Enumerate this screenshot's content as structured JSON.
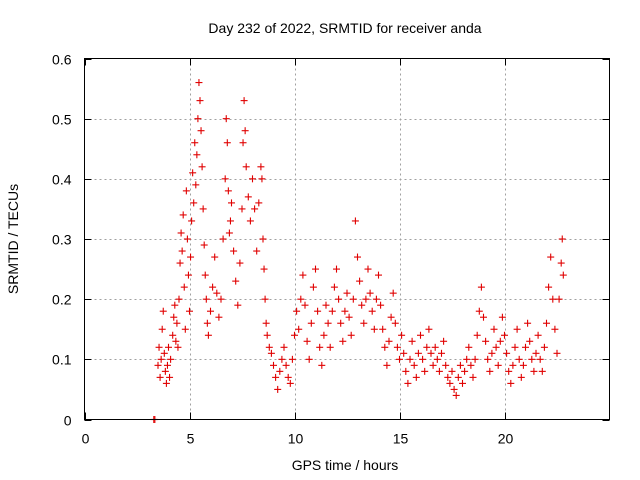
{
  "chart_data": {
    "type": "scatter",
    "title": "Day 232 of 2022, SRMTID for receiver anda",
    "xlabel": "GPS time / hours",
    "ylabel": "SRMTID / TECUs",
    "xlim": [
      0,
      25
    ],
    "ylim": [
      0,
      0.6
    ],
    "xticks": [
      0,
      5,
      10,
      15,
      20
    ],
    "xtick_labels": [
      "0",
      "5",
      "10",
      "15",
      "20"
    ],
    "yticks": [
      0,
      0.1,
      0.2,
      0.3,
      0.4,
      0.5,
      0.6
    ],
    "ytick_labels": [
      "0",
      "0.1",
      "0.2",
      "0.3",
      "0.4",
      "0.5",
      "0.6"
    ],
    "grid": true,
    "marker": "plus",
    "marker_color": "#e00000",
    "series": [
      {
        "name": "SRMTID",
        "points": [
          [
            3.3,
            0.0
          ],
          [
            3.35,
            0.0
          ],
          [
            3.5,
            0.09
          ],
          [
            3.55,
            0.12
          ],
          [
            3.6,
            0.07
          ],
          [
            3.65,
            0.1
          ],
          [
            3.7,
            0.15
          ],
          [
            3.75,
            0.18
          ],
          [
            3.8,
            0.11
          ],
          [
            3.85,
            0.08
          ],
          [
            3.9,
            0.06
          ],
          [
            3.95,
            0.09
          ],
          [
            4.0,
            0.12
          ],
          [
            4.05,
            0.07
          ],
          [
            4.1,
            0.1
          ],
          [
            4.2,
            0.14
          ],
          [
            4.25,
            0.17
          ],
          [
            4.3,
            0.19
          ],
          [
            4.35,
            0.13
          ],
          [
            4.4,
            0.16
          ],
          [
            4.45,
            0.12
          ],
          [
            4.5,
            0.2
          ],
          [
            4.55,
            0.26
          ],
          [
            4.6,
            0.31
          ],
          [
            4.65,
            0.28
          ],
          [
            4.7,
            0.34
          ],
          [
            4.75,
            0.22
          ],
          [
            4.8,
            0.15
          ],
          [
            4.85,
            0.38
          ],
          [
            4.9,
            0.3
          ],
          [
            4.95,
            0.24
          ],
          [
            5.0,
            0.18
          ],
          [
            5.05,
            0.27
          ],
          [
            5.1,
            0.33
          ],
          [
            5.15,
            0.41
          ],
          [
            5.2,
            0.36
          ],
          [
            5.25,
            0.46
          ],
          [
            5.3,
            0.39
          ],
          [
            5.35,
            0.44
          ],
          [
            5.4,
            0.5
          ],
          [
            5.45,
            0.56
          ],
          [
            5.5,
            0.53
          ],
          [
            5.55,
            0.48
          ],
          [
            5.6,
            0.42
          ],
          [
            5.65,
            0.35
          ],
          [
            5.7,
            0.29
          ],
          [
            5.75,
            0.24
          ],
          [
            5.8,
            0.2
          ],
          [
            5.85,
            0.16
          ],
          [
            5.9,
            0.14
          ],
          [
            6.0,
            0.18
          ],
          [
            6.1,
            0.22
          ],
          [
            6.2,
            0.27
          ],
          [
            6.3,
            0.21
          ],
          [
            6.4,
            0.17
          ],
          [
            6.5,
            0.2
          ],
          [
            6.6,
            0.3
          ],
          [
            6.7,
            0.4
          ],
          [
            6.75,
            0.5
          ],
          [
            6.8,
            0.46
          ],
          [
            6.85,
            0.38
          ],
          [
            6.9,
            0.31
          ],
          [
            6.95,
            0.33
          ],
          [
            7.0,
            0.36
          ],
          [
            7.1,
            0.28
          ],
          [
            7.2,
            0.23
          ],
          [
            7.3,
            0.19
          ],
          [
            7.4,
            0.26
          ],
          [
            7.5,
            0.35
          ],
          [
            7.55,
            0.46
          ],
          [
            7.6,
            0.53
          ],
          [
            7.65,
            0.48
          ],
          [
            7.7,
            0.42
          ],
          [
            7.8,
            0.37
          ],
          [
            7.9,
            0.33
          ],
          [
            8.0,
            0.4
          ],
          [
            8.1,
            0.35
          ],
          [
            8.2,
            0.28
          ],
          [
            8.3,
            0.36
          ],
          [
            8.4,
            0.42
          ],
          [
            8.45,
            0.4
          ],
          [
            8.5,
            0.3
          ],
          [
            8.55,
            0.25
          ],
          [
            8.6,
            0.2
          ],
          [
            8.65,
            0.16
          ],
          [
            8.7,
            0.14
          ],
          [
            8.8,
            0.12
          ],
          [
            8.9,
            0.11
          ],
          [
            9.0,
            0.09
          ],
          [
            9.1,
            0.07
          ],
          [
            9.2,
            0.05
          ],
          [
            9.3,
            0.08
          ],
          [
            9.4,
            0.1
          ],
          [
            9.5,
            0.12
          ],
          [
            9.6,
            0.09
          ],
          [
            9.7,
            0.07
          ],
          [
            9.8,
            0.06
          ],
          [
            9.9,
            0.1
          ],
          [
            10.0,
            0.14
          ],
          [
            10.1,
            0.18
          ],
          [
            10.2,
            0.15
          ],
          [
            10.3,
            0.2
          ],
          [
            10.4,
            0.24
          ],
          [
            10.5,
            0.19
          ],
          [
            10.6,
            0.13
          ],
          [
            10.7,
            0.1
          ],
          [
            10.8,
            0.16
          ],
          [
            10.9,
            0.22
          ],
          [
            11.0,
            0.25
          ],
          [
            11.1,
            0.18
          ],
          [
            11.2,
            0.12
          ],
          [
            11.3,
            0.09
          ],
          [
            11.4,
            0.14
          ],
          [
            11.5,
            0.19
          ],
          [
            11.6,
            0.16
          ],
          [
            11.7,
            0.12
          ],
          [
            11.8,
            0.18
          ],
          [
            11.9,
            0.22
          ],
          [
            12.0,
            0.25
          ],
          [
            12.1,
            0.2
          ],
          [
            12.2,
            0.16
          ],
          [
            12.3,
            0.13
          ],
          [
            12.4,
            0.18
          ],
          [
            12.5,
            0.21
          ],
          [
            12.6,
            0.17
          ],
          [
            12.7,
            0.14
          ],
          [
            12.8,
            0.2
          ],
          [
            12.9,
            0.33
          ],
          [
            13.0,
            0.27
          ],
          [
            13.1,
            0.23
          ],
          [
            13.2,
            0.19
          ],
          [
            13.3,
            0.16
          ],
          [
            13.4,
            0.2
          ],
          [
            13.5,
            0.25
          ],
          [
            13.6,
            0.21
          ],
          [
            13.7,
            0.18
          ],
          [
            13.8,
            0.15
          ],
          [
            13.9,
            0.2
          ],
          [
            14.0,
            0.24
          ],
          [
            14.1,
            0.19
          ],
          [
            14.2,
            0.15
          ],
          [
            14.3,
            0.12
          ],
          [
            14.4,
            0.09
          ],
          [
            14.5,
            0.13
          ],
          [
            14.6,
            0.17
          ],
          [
            14.7,
            0.21
          ],
          [
            14.8,
            0.16
          ],
          [
            14.9,
            0.12
          ],
          [
            15.0,
            0.1
          ],
          [
            15.1,
            0.14
          ],
          [
            15.2,
            0.11
          ],
          [
            15.3,
            0.08
          ],
          [
            15.4,
            0.06
          ],
          [
            15.5,
            0.1
          ],
          [
            15.6,
            0.13
          ],
          [
            15.7,
            0.09
          ],
          [
            15.8,
            0.07
          ],
          [
            15.9,
            0.11
          ],
          [
            16.0,
            0.14
          ],
          [
            16.1,
            0.1
          ],
          [
            16.2,
            0.08
          ],
          [
            16.3,
            0.12
          ],
          [
            16.4,
            0.15
          ],
          [
            16.5,
            0.11
          ],
          [
            16.6,
            0.09
          ],
          [
            16.7,
            0.12
          ],
          [
            16.8,
            0.1
          ],
          [
            16.9,
            0.08
          ],
          [
            17.0,
            0.11
          ],
          [
            17.1,
            0.13
          ],
          [
            17.2,
            0.09
          ],
          [
            17.3,
            0.07
          ],
          [
            17.4,
            0.06
          ],
          [
            17.5,
            0.08
          ],
          [
            17.6,
            0.05
          ],
          [
            17.7,
            0.04
          ],
          [
            17.8,
            0.07
          ],
          [
            17.9,
            0.09
          ],
          [
            18.0,
            0.06
          ],
          [
            18.1,
            0.08
          ],
          [
            18.2,
            0.1
          ],
          [
            18.3,
            0.12
          ],
          [
            18.4,
            0.09
          ],
          [
            18.5,
            0.07
          ],
          [
            18.6,
            0.1
          ],
          [
            18.7,
            0.14
          ],
          [
            18.8,
            0.18
          ],
          [
            18.9,
            0.22
          ],
          [
            19.0,
            0.17
          ],
          [
            19.1,
            0.13
          ],
          [
            19.2,
            0.1
          ],
          [
            19.3,
            0.08
          ],
          [
            19.4,
            0.11
          ],
          [
            19.5,
            0.15
          ],
          [
            19.6,
            0.12
          ],
          [
            19.7,
            0.09
          ],
          [
            19.8,
            0.13
          ],
          [
            19.9,
            0.17
          ],
          [
            20.0,
            0.14
          ],
          [
            20.1,
            0.11
          ],
          [
            20.2,
            0.08
          ],
          [
            20.3,
            0.06
          ],
          [
            20.4,
            0.09
          ],
          [
            20.5,
            0.12
          ],
          [
            20.6,
            0.15
          ],
          [
            20.7,
            0.1
          ],
          [
            20.8,
            0.07
          ],
          [
            20.9,
            0.09
          ],
          [
            21.0,
            0.12
          ],
          [
            21.1,
            0.16
          ],
          [
            21.2,
            0.13
          ],
          [
            21.3,
            0.1
          ],
          [
            21.4,
            0.08
          ],
          [
            21.5,
            0.11
          ],
          [
            21.6,
            0.14
          ],
          [
            21.7,
            0.1
          ],
          [
            21.8,
            0.08
          ],
          [
            21.9,
            0.12
          ],
          [
            22.0,
            0.16
          ],
          [
            22.1,
            0.22
          ],
          [
            22.2,
            0.27
          ],
          [
            22.3,
            0.2
          ],
          [
            22.4,
            0.15
          ],
          [
            22.5,
            0.11
          ],
          [
            22.6,
            0.2
          ],
          [
            22.7,
            0.26
          ],
          [
            22.75,
            0.3
          ],
          [
            22.8,
            0.24
          ]
        ]
      }
    ]
  }
}
